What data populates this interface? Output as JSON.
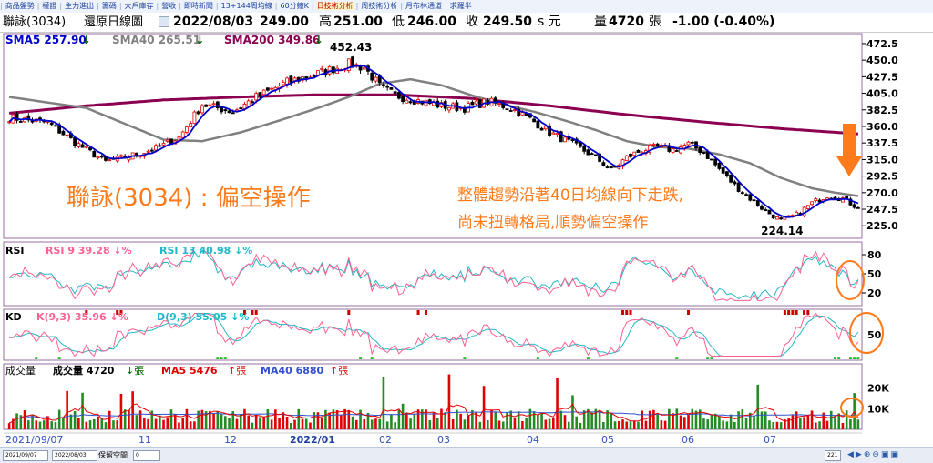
{
  "nav_items": [
    "商品盤勢",
    "權證",
    "主力進出",
    "籌碼",
    "大戶庫存",
    "營收",
    "即時新聞",
    "13+144周均線",
    "60分鐘K",
    "日技術分析",
    "周技術分析",
    "月布林通道",
    "求羅半"
  ],
  "nav_active": 9,
  "info": {
    "name": "聯詠(3034)",
    "chart_name": "還原日線圖",
    "date": "2022/08/03",
    "open": "249.00",
    "high_label": "高",
    "high": "251.00",
    "low_label": "低",
    "low": "246.00",
    "close_label": "收",
    "close": "249.50",
    "close_suffix": "s 元",
    "vol_label": "量",
    "vol": "4720",
    "vol_unit": "張",
    "change": "-1.00 (-0.40%)"
  },
  "colors": {
    "up": "#e00000",
    "down": "#000000",
    "sma5": "#0000cc",
    "sma40": "#808080",
    "sma200": "#8b0050",
    "annot": "#ff7a1a",
    "rsi9": "#ff6090",
    "rsi13": "#20b8c8",
    "k": "#ff6090",
    "d": "#20b8c8",
    "vol_up": "#e00000",
    "vol_down": "#228b22",
    "ma5v": "#e00000",
    "ma40v": "#3050d0"
  },
  "main_legend": [
    {
      "text": "SMA5 257.90",
      "arrow": "↓",
      "color": "#0000cc"
    },
    {
      "text": "SMA40 265.51",
      "arrow": "↓",
      "color": "#808080"
    },
    {
      "text": "SMA200 349.86",
      "arrow": "↓",
      "color": "#8b0050"
    }
  ],
  "peak_label": "452.43",
  "trough_label": "224.14",
  "annotation_title": "聯詠(3034) : 偏空操作",
  "annotation_text": [
    "整體趨勢沿著40日均線向下走跌,",
    "尚未扭轉格局,順勢偏空操作"
  ],
  "rsi_legend": {
    "title": "RSI",
    "a": "RSI 9 39.28",
    "a_arrow": "↓%",
    "b": "RSI 13 40.98",
    "b_arrow": "↓%"
  },
  "kd_legend": {
    "title": "KD",
    "a": "K(9,3) 35.96",
    "a_arrow": "↓%",
    "b": "D(9,3) 55.05",
    "b_arrow": "↓%"
  },
  "vol_legend": {
    "title": "成交量",
    "a": "成交量 4720",
    "a_arrow": "↓",
    "a_unit": "張",
    "b": "MA5 5476",
    "b_arrow": "↑",
    "b_unit": "張",
    "c": "MA40 6880",
    "c_arrow": "↑",
    "c_unit": "張"
  },
  "x_labels": [
    "2021/09/07",
    "11",
    "12",
    "2022/01",
    "02",
    "03",
    "04",
    "05",
    "06",
    "07"
  ],
  "bottom": {
    "from": "2021/09/07",
    "to": "2022/08/03",
    "keep": "保留空間",
    "keep_val": "0",
    "count": "221"
  },
  "chart_data": {
    "type": "candlestick",
    "price_axis": {
      "ticks": [
        472.5,
        450.0,
        427.5,
        405.0,
        382.5,
        360.0,
        337.5,
        315.0,
        292.5,
        270.0,
        247.5,
        225.0
      ],
      "ylim": [
        208,
        486
      ]
    },
    "rsi_axis": {
      "ticks": [
        80,
        50,
        20
      ],
      "ylim": [
        0,
        100
      ]
    },
    "kd_axis": {
      "ticks": [
        50
      ],
      "ylim": [
        0,
        100
      ]
    },
    "vol_axis": {
      "ticks_label": [
        "20K",
        "10K"
      ],
      "ticks": [
        20000,
        10000
      ],
      "ylim": [
        0,
        30000
      ]
    },
    "x_dates": [
      "2021/09/07",
      "2022/08/03"
    ],
    "n_bars": 221,
    "close_anchors": [
      [
        0,
        372
      ],
      [
        10,
        365
      ],
      [
        18,
        335
      ],
      [
        25,
        312
      ],
      [
        30,
        318
      ],
      [
        38,
        330
      ],
      [
        44,
        345
      ],
      [
        50,
        390
      ],
      [
        58,
        380
      ],
      [
        64,
        400
      ],
      [
        72,
        420
      ],
      [
        80,
        432
      ],
      [
        88,
        445
      ],
      [
        92,
        440
      ],
      [
        96,
        415
      ],
      [
        100,
        402
      ],
      [
        106,
        395
      ],
      [
        112,
        388
      ],
      [
        118,
        385
      ],
      [
        124,
        394
      ],
      [
        130,
        385
      ],
      [
        135,
        370
      ],
      [
        140,
        352
      ],
      [
        146,
        336
      ],
      [
        152,
        318
      ],
      [
        156,
        300
      ],
      [
        160,
        318
      ],
      [
        164,
        328
      ],
      [
        168,
        332
      ],
      [
        172,
        328
      ],
      [
        176,
        336
      ],
      [
        180,
        325
      ],
      [
        184,
        302
      ],
      [
        188,
        280
      ],
      [
        192,
        262
      ],
      [
        196,
        245
      ],
      [
        200,
        232
      ],
      [
        204,
        240
      ],
      [
        208,
        256
      ],
      [
        212,
        266
      ],
      [
        216,
        262
      ],
      [
        220,
        249.5
      ]
    ],
    "sma40_anchors": [
      [
        0,
        400
      ],
      [
        20,
        385
      ],
      [
        40,
        342
      ],
      [
        50,
        340
      ],
      [
        60,
        352
      ],
      [
        70,
        368
      ],
      [
        80,
        385
      ],
      [
        88,
        400
      ],
      [
        96,
        418
      ],
      [
        104,
        424
      ],
      [
        112,
        416
      ],
      [
        120,
        402
      ],
      [
        128,
        390
      ],
      [
        136,
        380
      ],
      [
        144,
        368
      ],
      [
        152,
        355
      ],
      [
        160,
        340
      ],
      [
        168,
        332
      ],
      [
        176,
        330
      ],
      [
        184,
        322
      ],
      [
        192,
        310
      ],
      [
        200,
        290
      ],
      [
        208,
        276
      ],
      [
        214,
        270
      ],
      [
        220,
        265.5
      ]
    ],
    "sma200_anchors": [
      [
        0,
        378
      ],
      [
        20,
        388
      ],
      [
        40,
        396
      ],
      [
        60,
        400
      ],
      [
        80,
        403
      ],
      [
        100,
        403
      ],
      [
        120,
        398
      ],
      [
        140,
        388
      ],
      [
        160,
        376
      ],
      [
        180,
        366
      ],
      [
        200,
        357
      ],
      [
        220,
        349.9
      ]
    ],
    "rsi_last": [
      39.28,
      40.98
    ],
    "kd_last": [
      35.96,
      55.05
    ],
    "volume_last": 4720,
    "volume_ma5_last": 5476,
    "volume_ma40_last": 6880
  }
}
